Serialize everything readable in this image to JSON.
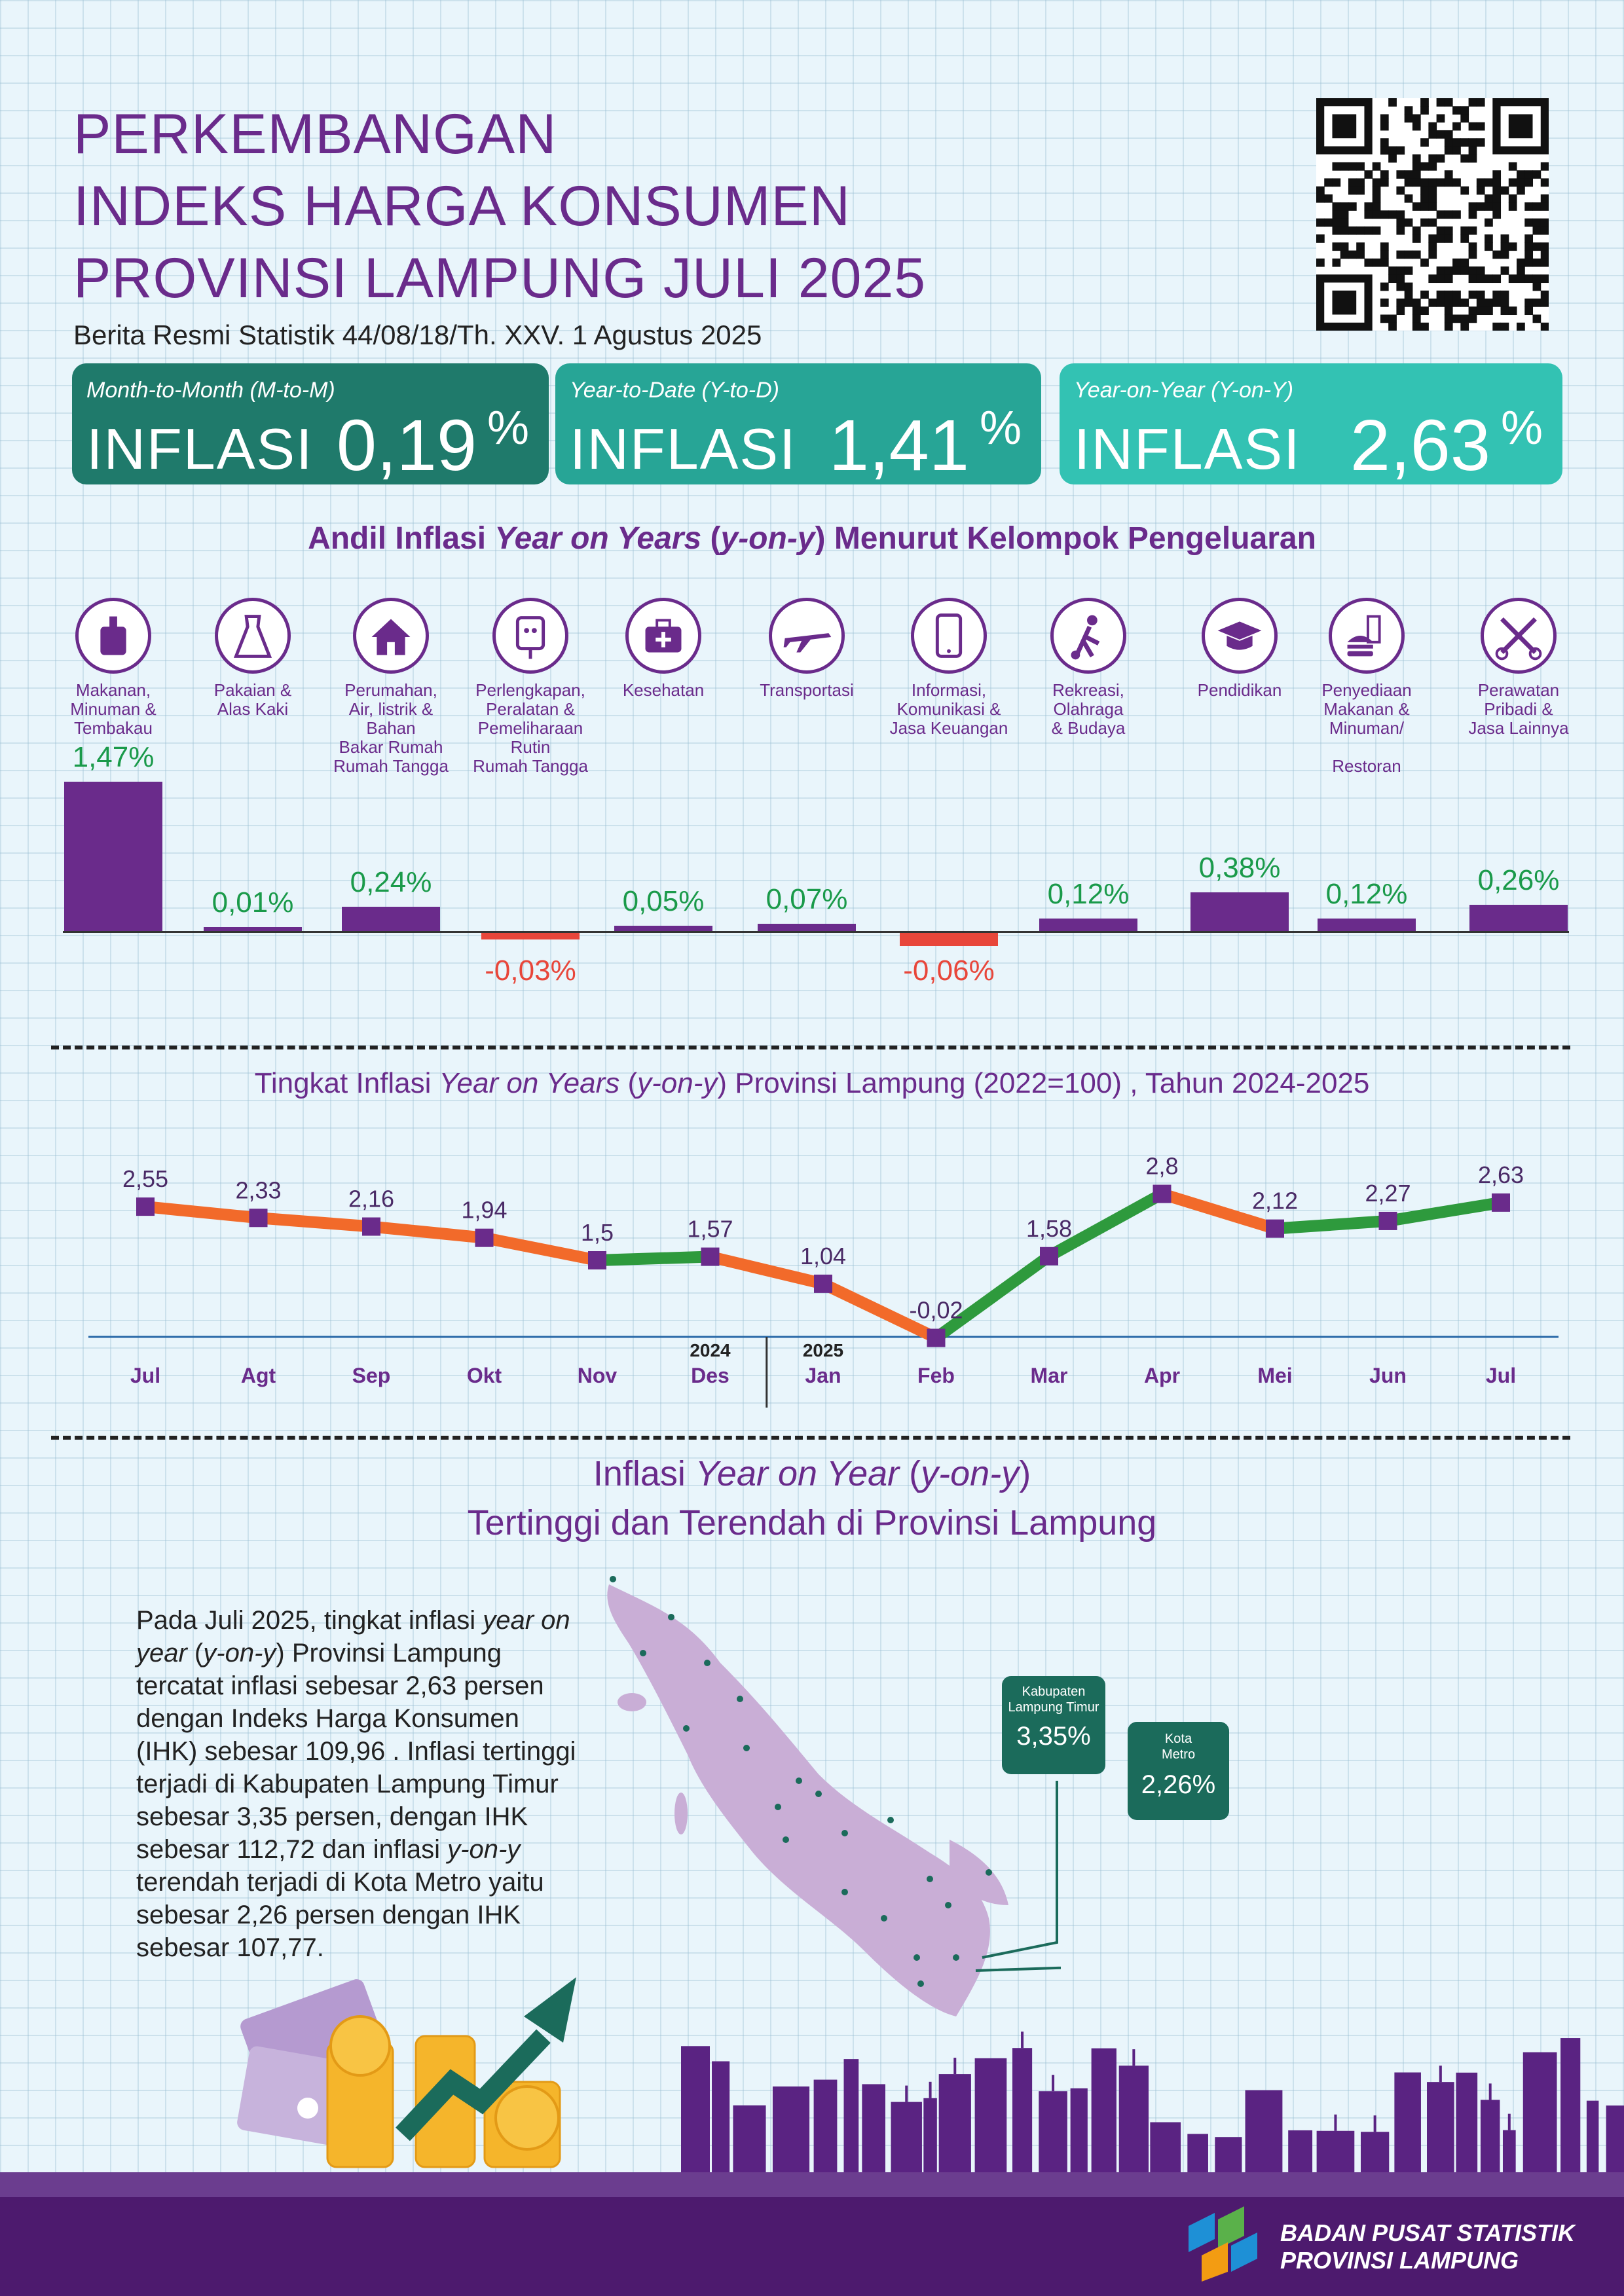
{
  "header": {
    "title_lines": [
      "PERKEMBANGAN",
      "INDEKS HARGA KONSUMEN",
      "PROVINSI LAMPUNG JULI 2025"
    ],
    "subtitle": "Berita Resmi Statistik 44/08/18/Th. XXV. 1 Agustus 2025"
  },
  "cards": [
    {
      "label": "Month-to-Month (M-to-M)",
      "word": "INFLASI",
      "value": "0,19",
      "unit": "%",
      "color": "#1f7a6b"
    },
    {
      "label": "Year-to-Date (Y-to-D)",
      "word": "INFLASI",
      "value": "1,41",
      "unit": "%",
      "color": "#27a596"
    },
    {
      "label": "Year-on-Year (Y-on-Y)",
      "word": "INFLASI",
      "value": "2,63",
      "unit": "%",
      "color": "#33c2b3"
    }
  ],
  "section1": {
    "title_pre": "Andil Inflasi ",
    "title_em": "Year on Years",
    "title_mid": " (",
    "title_em2": "y-on-y",
    "title_post": ") Menurut Kelompok Pengeluaran"
  },
  "section2": {
    "title_pre": "Tingkat Inflasi ",
    "title_em": "Year on Years",
    "title_mid": " (",
    "title_em2": "y-on-y",
    "title_post": ") Provinsi Lampung (2022=100) , Tahun 2024-2025"
  },
  "section3": {
    "title1_pre": "Inflasi ",
    "title1_em": "Year on Year",
    "title1_mid": " (",
    "title1_em2": "y-on-y",
    "title1_post": ")",
    "title2": "Tertinggi dan Terendah di Provinsi Lampung",
    "paragraph_parts": [
      {
        "t": "Pada Juli 2025, tingkat inflasi ",
        "i": false
      },
      {
        "t": "year on year",
        "i": true
      },
      {
        "t": " (",
        "i": false
      },
      {
        "t": "y-on-y",
        "i": true
      },
      {
        "t": ") Provinsi Lampung tercatat inflasi sebesar 2,63 persen dengan Indeks Harga Konsumen (IHK) sebesar 109,96 . Inflasi tertinggi terjadi di Kabupaten Lampung Timur sebesar 3,35 persen, dengan IHK sebesar 112,72 dan inflasi ",
        "i": false
      },
      {
        "t": "y-on-y",
        "i": true
      },
      {
        "t": " terendah terjadi di Kota Metro yaitu sebesar 2,26 persen dengan IHK sebesar 107,77.",
        "i": false
      }
    ],
    "callouts": [
      {
        "name": "Kabupaten\nLampung Timur",
        "value": "3,35%"
      },
      {
        "name": "Kota\nMetro",
        "value": "2,26%"
      }
    ]
  },
  "chart_data": [
    {
      "type": "bar",
      "categories": [
        "Makanan,\nMinuman &\nTembakau",
        "Pakaian &\nAlas Kaki",
        "Perumahan,\nAir, listrik &\nBahan\nBakar Rumah\nRumah Tangga",
        "Perlengkapan,\nPeralatan &\nPemeliharaan\nRutin\nRumah Tangga",
        "Kesehatan",
        "Transportasi",
        "Informasi,\nKomunikasi &\nJasa Keuangan",
        "Rekreasi,\nOlahraga\n& Budaya",
        "Pendidikan",
        "Penyediaan\nMakanan &\nMinuman/\n\nRestoran",
        "Perawatan\nPribadi &\nJasa Lainnya"
      ],
      "icons": [
        "food-icon",
        "dress-icon",
        "house-icon",
        "plug-icon",
        "medical-bag-icon",
        "airplane-icon",
        "phone-icon",
        "soccer-icon",
        "graduation-cap-icon",
        "burger-drink-icon",
        "scissors-comb-icon"
      ],
      "values": [
        1.47,
        0.01,
        0.24,
        -0.03,
        0.05,
        0.07,
        -0.06,
        0.12,
        0.38,
        0.12,
        0.26
      ],
      "labels": [
        "1,47%",
        "0,01%",
        "0,24%",
        "-0,03%",
        "0,05%",
        "0,07%",
        "-0,06%",
        "0,12%",
        "0,38%",
        "0,12%",
        "0,26%"
      ],
      "colors": {
        "positive": "#6a2b8b",
        "negative": "#e8463a",
        "positive_label": "#1a9a4a",
        "negative_label": "#e8463a"
      }
    },
    {
      "type": "line",
      "x": [
        "Jul",
        "Agt",
        "Sep",
        "Okt",
        "Nov",
        "Des",
        "Jan",
        "Feb",
        "Mar",
        "Apr",
        "Mei",
        "Jun",
        "Jul"
      ],
      "values": [
        2.55,
        2.33,
        2.16,
        1.94,
        1.5,
        1.57,
        1.04,
        -0.02,
        1.58,
        2.8,
        2.12,
        2.27,
        2.63
      ],
      "labels": [
        "2,55",
        "2,33",
        "2,16",
        "1,94",
        "1,5",
        "1,57",
        "1,04",
        "-0,02",
        "1,58",
        "2,8",
        "2,12",
        "2,27",
        "2,63"
      ],
      "year_labels": [
        "2024",
        "2025"
      ],
      "colors": {
        "up": "#2e9a3d",
        "down": "#f26a2a",
        "marker": "#6a2b8b"
      }
    }
  ],
  "footer": {
    "org1": "BADAN PUSAT STATISTIK",
    "org2": "PROVINSI LAMPUNG"
  }
}
